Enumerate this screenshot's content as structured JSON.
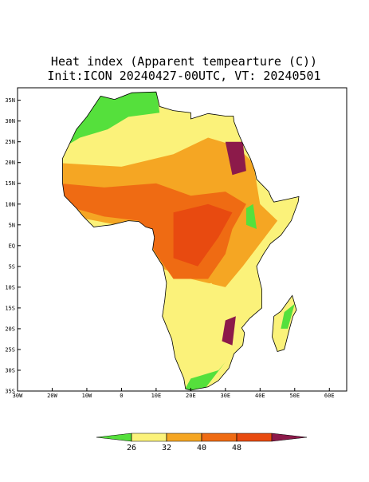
{
  "title": "Heat index (Apparent tempearture (C))",
  "subtitle": "Init:ICON 20240427-00UTC, VT: 20240501",
  "map": {
    "xlim": [
      -30,
      65
    ],
    "ylim": [
      -35,
      38
    ],
    "xticks": [
      {
        "value": -30,
        "label": "30W"
      },
      {
        "value": -20,
        "label": "20W"
      },
      {
        "value": -10,
        "label": "10W"
      },
      0,
      {
        "value": 10,
        "label": "10E"
      },
      {
        "value": 20,
        "label": "20E"
      },
      {
        "value": 30,
        "label": "30E"
      },
      {
        "value": 40,
        "label": "40E"
      },
      {
        "value": 50,
        "label": "50E"
      },
      {
        "value": 60,
        "label": "60E"
      }
    ],
    "yticks": [
      {
        "value": 35,
        "label": "35N"
      },
      {
        "value": 30,
        "label": "30N"
      },
      {
        "value": 25,
        "label": "25N"
      },
      {
        "value": 20,
        "label": "20N"
      },
      {
        "value": 15,
        "label": "15N"
      },
      {
        "value": 10,
        "label": "10N"
      },
      {
        "value": 5,
        "label": "5N"
      },
      {
        "value": 0,
        "label": "EQ"
      },
      {
        "value": -5,
        "label": "5S"
      },
      {
        "value": -10,
        "label": "10S"
      },
      {
        "value": -15,
        "label": "15S"
      },
      {
        "value": -20,
        "label": "20S"
      },
      {
        "value": -25,
        "label": "25S"
      },
      {
        "value": -30,
        "label": "30S"
      },
      {
        "value": -35,
        "label": "35S"
      }
    ]
  },
  "colorbar": {
    "levels": [
      26,
      32,
      40,
      48
    ],
    "colors": [
      "#55e03c",
      "#fbf27a",
      "#f5a623",
      "#ef6b13",
      "#e84a10",
      "#8c1a4a"
    ]
  }
}
